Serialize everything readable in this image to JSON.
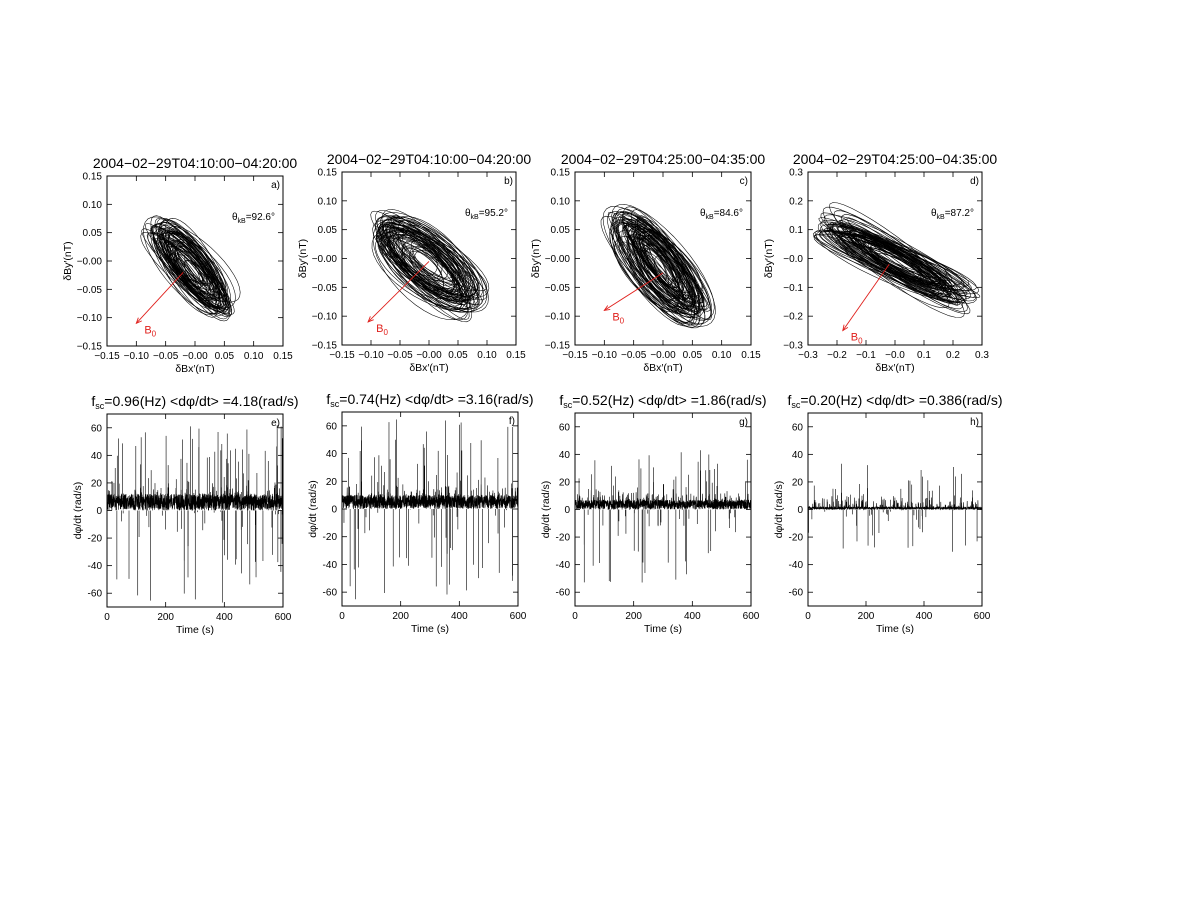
{
  "chart_data": [
    {
      "type": "scatter",
      "panel": "a)",
      "title": "2004−02−29T04:10:00−04:20:00",
      "xlabel": "δBx′(nT)",
      "ylabel": "δBy′(nT)",
      "xlim": [
        -0.15,
        0.15
      ],
      "ylim": [
        -0.15,
        0.15
      ],
      "xticks": [
        -0.15,
        -0.1,
        -0.05,
        0.0,
        0.05,
        0.1,
        0.15
      ],
      "yticks": [
        -0.15,
        -0.1,
        -0.05,
        0.0,
        0.05,
        0.1,
        0.15
      ],
      "xtick_labels": [
        "−0.15",
        "−0.10",
        "−0.05",
        "−0.00",
        "0.05",
        "0.10",
        "0.15"
      ],
      "ytick_labels": [
        "−0.15",
        "−0.10",
        "−0.05",
        "−0.00",
        "0.05",
        "0.10",
        "0.15"
      ],
      "theta": {
        "prefix": "θ",
        "sub": "kB",
        "value": "=92.6°"
      },
      "b0_label": {
        "main": "B",
        "sub": "0"
      },
      "hodogram": {
        "major_axis": 0.095,
        "minor_axis": 0.032,
        "angle_deg": -52,
        "center": [
          -0.008,
          -0.012
        ],
        "loops": 70
      },
      "b0_arrow": {
        "from": [
          -0.02,
          -0.02
        ],
        "to": [
          -0.1,
          -0.11
        ],
        "color": "#e0201c"
      }
    },
    {
      "type": "scatter",
      "panel": "b)",
      "title": "2004−02−29T04:10:00−04:20:00",
      "xlabel": "δBx′(nT)",
      "ylabel": "δBy′(nT)",
      "xlim": [
        -0.15,
        0.15
      ],
      "ylim": [
        -0.15,
        0.15
      ],
      "xticks": [
        -0.15,
        -0.1,
        -0.05,
        0.0,
        0.05,
        0.1,
        0.15
      ],
      "yticks": [
        -0.15,
        -0.1,
        -0.05,
        0.0,
        0.05,
        0.1,
        0.15
      ],
      "xtick_labels": [
        "−0.15",
        "−0.10",
        "−0.05",
        "−0.00",
        "0.05",
        "0.10",
        "0.15"
      ],
      "ytick_labels": [
        "−0.15",
        "−0.10",
        "−0.05",
        "−0.00",
        "0.05",
        "0.10",
        "0.15"
      ],
      "theta": {
        "prefix": "θ",
        "sub": "kB",
        "value": "=95.2°"
      },
      "b0_label": {
        "main": "B",
        "sub": "0"
      },
      "hodogram": {
        "major_axis": 0.105,
        "minor_axis": 0.045,
        "angle_deg": -40,
        "center": [
          -0.005,
          -0.01
        ],
        "loops": 70
      },
      "b0_arrow": {
        "from": [
          0.0,
          -0.005
        ],
        "to": [
          -0.105,
          -0.11
        ],
        "color": "#e0201c"
      }
    },
    {
      "type": "scatter",
      "panel": "c)",
      "title": "2004−02−29T04:25:00−04:35:00",
      "xlabel": "δBx′(nT)",
      "ylabel": "δBy′(nT)",
      "xlim": [
        -0.15,
        0.15
      ],
      "ylim": [
        -0.15,
        0.15
      ],
      "xticks": [
        -0.15,
        -0.1,
        -0.05,
        0.0,
        0.05,
        0.1,
        0.15
      ],
      "yticks": [
        -0.15,
        -0.1,
        -0.05,
        0.0,
        0.05,
        0.1,
        0.15
      ],
      "xtick_labels": [
        "−0.15",
        "−0.10",
        "−0.05",
        "−0.00",
        "0.05",
        "0.10",
        "0.15"
      ],
      "ytick_labels": [
        "−0.15",
        "−0.10",
        "−0.05",
        "−0.00",
        "0.05",
        "0.10",
        "0.15"
      ],
      "theta": {
        "prefix": "θ",
        "sub": "kB",
        "value": "=84.6°"
      },
      "b0_label": {
        "main": "B",
        "sub": "0"
      },
      "hodogram": {
        "major_axis": 0.115,
        "minor_axis": 0.04,
        "angle_deg": -55,
        "center": [
          -0.005,
          -0.015
        ],
        "loops": 80
      },
      "b0_arrow": {
        "from": [
          0.0,
          -0.025
        ],
        "to": [
          -0.1,
          -0.09
        ],
        "color": "#e0201c"
      }
    },
    {
      "type": "scatter",
      "panel": "d)",
      "title": "2004−02−29T04:25:00−04:35:00",
      "xlabel": "δBx′(nT)",
      "ylabel": "δBy′(nT)",
      "xlim": [
        -0.3,
        0.3
      ],
      "ylim": [
        -0.3,
        0.3
      ],
      "xticks": [
        -0.3,
        -0.2,
        -0.1,
        0.0,
        0.1,
        0.2,
        0.3
      ],
      "yticks": [
        -0.3,
        -0.2,
        -0.1,
        0.0,
        0.1,
        0.2,
        0.3
      ],
      "xtick_labels": [
        "−0.3",
        "−0.2",
        "−0.1",
        "−0.0",
        "0.1",
        "0.2",
        "0.3"
      ],
      "ytick_labels": [
        "−0.3",
        "−0.2",
        "−0.1",
        "−0.0",
        "0.1",
        "0.2",
        "0.3"
      ],
      "theta": {
        "prefix": "θ",
        "sub": "kB",
        "value": "=87.2°"
      },
      "b0_label": {
        "main": "B",
        "sub": "0"
      },
      "hodogram": {
        "major_axis": 0.28,
        "minor_axis": 0.05,
        "angle_deg": -28,
        "center": [
          0.0,
          -0.01
        ],
        "loops": 70
      },
      "b0_arrow": {
        "from": [
          -0.02,
          -0.02
        ],
        "to": [
          -0.18,
          -0.25
        ],
        "color": "#e0201c"
      }
    },
    {
      "type": "line",
      "panel": "e)",
      "title": {
        "prefix": "f",
        "sub": "sc",
        "rest": "=0.96(Hz) <dφ/dt> =4.18(rad/s)"
      },
      "xlabel": "Time (s)",
      "ylabel": "dφ/dt (rad/s)",
      "xlim": [
        0,
        600
      ],
      "ylim": [
        -70,
        70
      ],
      "xticks": [
        0,
        200,
        400,
        600
      ],
      "yticks": [
        -60,
        -40,
        -20,
        0,
        20,
        40,
        60
      ],
      "signal": {
        "frequency_hz": 0.96,
        "mean_rate": 4.18,
        "band": [
          0,
          12
        ],
        "spike_max": 62,
        "spike_min": -68,
        "n_pos_spikes": 90,
        "n_neg_spikes": 50
      }
    },
    {
      "type": "line",
      "panel": "f)",
      "title": {
        "prefix": "f",
        "sub": "sc",
        "rest": "=0.74(Hz) <dφ/dt> =3.16(rad/s)"
      },
      "xlabel": "Time (s)",
      "ylabel": "dφ/dt (rad/s)",
      "xlim": [
        0,
        600
      ],
      "ylim": [
        -70,
        70
      ],
      "xticks": [
        0,
        200,
        400,
        600
      ],
      "yticks": [
        -60,
        -40,
        -20,
        0,
        20,
        40,
        60
      ],
      "signal": {
        "frequency_hz": 0.74,
        "mean_rate": 3.16,
        "band": [
          0,
          10
        ],
        "spike_max": 65,
        "spike_min": -68,
        "n_pos_spikes": 80,
        "n_neg_spikes": 45
      }
    },
    {
      "type": "line",
      "panel": "g)",
      "title": {
        "prefix": "f",
        "sub": "sc",
        "rest": "=0.52(Hz) <dφ/dt> =1.86(rad/s)"
      },
      "xlabel": "Time (s)",
      "ylabel": "dφ/dt (rad/s)",
      "xlim": [
        0,
        600
      ],
      "ylim": [
        -70,
        70
      ],
      "xticks": [
        0,
        200,
        400,
        600
      ],
      "yticks": [
        -60,
        -40,
        -20,
        0,
        20,
        40,
        60
      ],
      "signal": {
        "frequency_hz": 0.52,
        "mean_rate": 1.86,
        "band": [
          0,
          7
        ],
        "spike_max": 43,
        "spike_min": -58,
        "n_pos_spikes": 70,
        "n_neg_spikes": 40
      }
    },
    {
      "type": "line",
      "panel": "h)",
      "title": {
        "prefix": "f",
        "sub": "sc",
        "rest": "=0.20(Hz) <dφ/dt> =0.386(rad/s)"
      },
      "xlabel": "Time (s)",
      "ylabel": "dφ/dt (rad/s)",
      "xlim": [
        0,
        600
      ],
      "ylim": [
        -70,
        70
      ],
      "xticks": [
        0,
        200,
        400,
        600
      ],
      "yticks": [
        -60,
        -40,
        -20,
        0,
        20,
        40,
        60
      ],
      "signal": {
        "frequency_hz": 0.2,
        "mean_rate": 0.386,
        "band": [
          0,
          2
        ],
        "spike_max": 35,
        "spike_min": -32,
        "n_pos_spikes": 55,
        "n_neg_spikes": 35
      }
    }
  ]
}
